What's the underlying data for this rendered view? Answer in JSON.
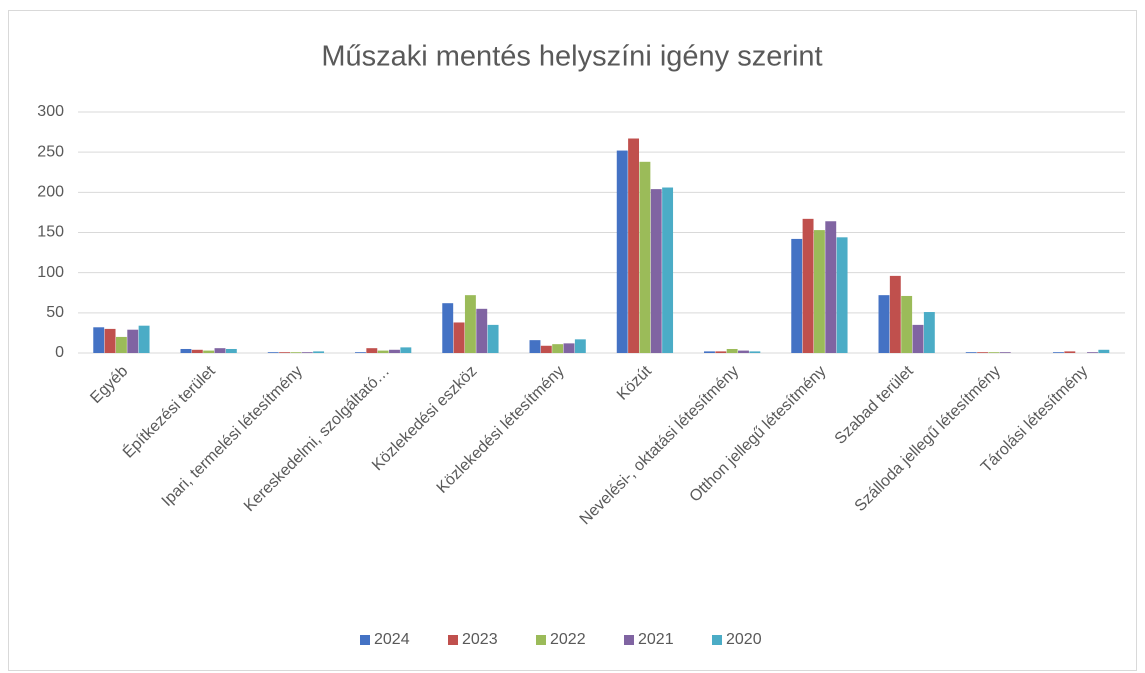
{
  "chart_data": {
    "type": "bar",
    "title": "Műszaki mentés helyszíni igény szerint",
    "categories": [
      "Egyéb",
      "Építkezési terület",
      "Ipari, termelési létesítmény",
      "Kereskedelmi, szolgáltató…",
      "Közlekedési eszköz",
      "Közlekedési létesítmény",
      "Közút",
      "Nevelési-, oktatási létesítmény",
      "Otthon jellegű létesítmény",
      "Szabad terület",
      "Szálloda jellegű létesítmény",
      "Tárolási létesítmény"
    ],
    "series": [
      {
        "name": "2024",
        "color": "#4472c4",
        "values": [
          32,
          5,
          1,
          1,
          62,
          16,
          252,
          2,
          142,
          72,
          1,
          1
        ]
      },
      {
        "name": "2023",
        "color": "#c0504d",
        "values": [
          30,
          4,
          1,
          6,
          38,
          9,
          267,
          2,
          167,
          96,
          1,
          2
        ]
      },
      {
        "name": "2022",
        "color": "#9bbb59",
        "values": [
          20,
          3,
          1,
          3,
          72,
          11,
          238,
          5,
          153,
          71,
          1,
          0
        ]
      },
      {
        "name": "2021",
        "color": "#8064a2",
        "values": [
          29,
          6,
          1,
          4,
          55,
          12,
          204,
          3,
          164,
          35,
          1,
          1
        ]
      },
      {
        "name": "2020",
        "color": "#4bacc6",
        "values": [
          34,
          5,
          2,
          7,
          35,
          17,
          206,
          2,
          144,
          51,
          0,
          4
        ]
      }
    ],
    "ylim": [
      0,
      300
    ],
    "yticks": [
      0,
      50,
      100,
      150,
      200,
      250,
      300
    ],
    "grid": true,
    "legend": "bottom"
  }
}
